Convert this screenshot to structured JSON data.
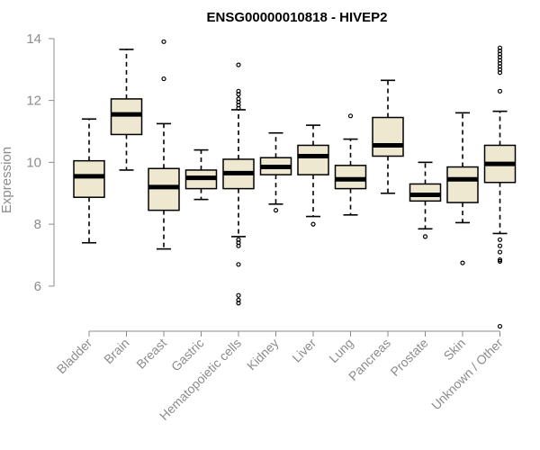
{
  "chart_data": {
    "type": "box",
    "title": "ENSG00000010818 - HIVEP2",
    "xlabel": "",
    "ylabel": "Expression",
    "ylim": [
      4.6,
      14.2
    ],
    "yticks": [
      6,
      8,
      10,
      12,
      14
    ],
    "grid": false,
    "colors": {
      "box_fill": "#efe8d0",
      "stroke": "#000000",
      "axis": "#8c8c8c"
    },
    "categories": [
      "Bladder",
      "Brain",
      "Breast",
      "Gastric",
      "Hematopoietic cells",
      "Kidney",
      "Liver",
      "Lung",
      "Pancreas",
      "Prostate",
      "Skin",
      "Unknown / Other"
    ],
    "boxes": [
      {
        "category": "Bladder",
        "min": 7.4,
        "q1": 8.87,
        "median": 9.55,
        "q3": 10.05,
        "max": 11.4,
        "outliers": []
      },
      {
        "category": "Brain",
        "min": 9.75,
        "q1": 10.9,
        "median": 11.55,
        "q3": 12.05,
        "max": 13.65,
        "outliers": []
      },
      {
        "category": "Breast",
        "min": 7.2,
        "q1": 8.45,
        "median": 9.2,
        "q3": 9.8,
        "max": 11.25,
        "outliers": [
          13.9,
          12.7
        ]
      },
      {
        "category": "Gastric",
        "min": 8.8,
        "q1": 9.15,
        "median": 9.5,
        "q3": 9.75,
        "max": 10.4,
        "outliers": []
      },
      {
        "category": "Hematopoietic cells",
        "min": 7.6,
        "q1": 9.15,
        "median": 9.65,
        "q3": 10.1,
        "max": 11.7,
        "outliers": [
          13.15,
          12.3,
          12.2,
          12.05,
          11.95,
          11.85,
          11.75,
          7.5,
          7.4,
          7.3,
          6.7,
          5.7,
          5.55,
          5.45
        ]
      },
      {
        "category": "Kidney",
        "min": 8.65,
        "q1": 9.6,
        "median": 9.85,
        "q3": 10.15,
        "max": 10.95,
        "outliers": [
          8.45
        ]
      },
      {
        "category": "Liver",
        "min": 8.25,
        "q1": 9.6,
        "median": 10.2,
        "q3": 10.55,
        "max": 11.2,
        "outliers": [
          8.0
        ]
      },
      {
        "category": "Lung",
        "min": 8.3,
        "q1": 9.15,
        "median": 9.45,
        "q3": 9.9,
        "max": 10.75,
        "outliers": [
          11.5
        ]
      },
      {
        "category": "Pancreas",
        "min": 9.0,
        "q1": 10.2,
        "median": 10.55,
        "q3": 11.45,
        "max": 12.65,
        "outliers": []
      },
      {
        "category": "Prostate",
        "min": 7.85,
        "q1": 8.75,
        "median": 8.95,
        "q3": 9.3,
        "max": 10.0,
        "outliers": [
          7.6
        ]
      },
      {
        "category": "Skin",
        "min": 8.05,
        "q1": 8.7,
        "median": 9.45,
        "q3": 9.85,
        "max": 11.6,
        "outliers": [
          6.75
        ]
      },
      {
        "category": "Unknown / Other",
        "min": 7.7,
        "q1": 9.35,
        "median": 9.95,
        "q3": 10.55,
        "max": 11.65,
        "outliers": [
          13.7,
          13.6,
          13.5,
          13.4,
          13.3,
          13.2,
          13.1,
          13.0,
          12.9,
          12.3,
          7.5,
          7.3,
          7.1,
          6.85,
          6.8,
          4.7
        ]
      }
    ]
  }
}
